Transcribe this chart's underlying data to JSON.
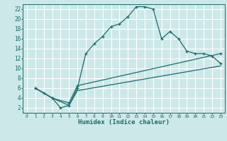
{
  "xlabel": "Humidex (Indice chaleur)",
  "background_color": "#cde8e8",
  "grid_color": "#ffffff",
  "line_color": "#1a6b6b",
  "xlim": [
    -0.5,
    23.5
  ],
  "ylim": [
    1,
    23
  ],
  "xticks": [
    0,
    1,
    2,
    3,
    4,
    5,
    6,
    7,
    8,
    9,
    10,
    11,
    12,
    13,
    14,
    15,
    16,
    17,
    18,
    19,
    20,
    21,
    22,
    23
  ],
  "yticks": [
    2,
    4,
    6,
    8,
    10,
    12,
    14,
    16,
    18,
    20,
    22
  ],
  "line1_x": [
    1,
    2,
    3,
    4,
    5,
    6,
    7,
    8,
    9,
    10,
    11,
    12,
    13,
    14,
    15,
    16,
    17,
    18,
    19,
    20,
    21,
    22,
    23
  ],
  "line1_y": [
    6,
    5,
    4,
    2,
    2.5,
    6,
    13,
    15,
    16.5,
    18.5,
    19,
    20.5,
    22.5,
    22.5,
    22,
    16,
    17.5,
    16,
    13.5,
    13,
    13,
    12.5,
    11
  ],
  "line2_x": [
    1,
    3,
    5,
    6,
    23
  ],
  "line2_y": [
    6,
    4,
    3,
    6.5,
    13
  ],
  "line3_x": [
    1,
    3,
    5,
    6,
    23
  ],
  "line3_y": [
    6,
    4,
    2.5,
    5.5,
    10.5
  ]
}
